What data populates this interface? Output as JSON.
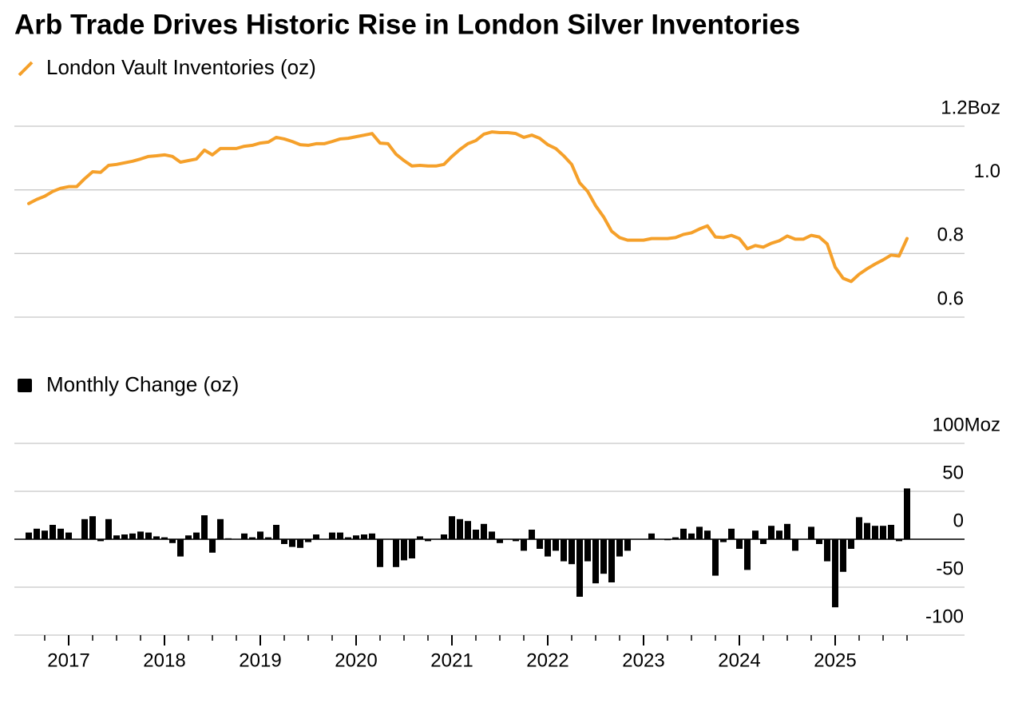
{
  "chart_data": [
    {
      "type": "line",
      "title": "Arb Trade Drives Historic Rise in London Silver Inventories",
      "series": [
        {
          "name": "London Vault Inventories (oz)",
          "color": "#f5a02a",
          "values": [
            0.957,
            0.97,
            0.98,
            0.995,
            1.005,
            1.01,
            1.01,
            1.035,
            1.057,
            1.055,
            1.077,
            1.08,
            1.085,
            1.09,
            1.097,
            1.105,
            1.107,
            1.11,
            1.105,
            1.087,
            1.092,
            1.097,
            1.125,
            1.11,
            1.13,
            1.13,
            1.13,
            1.137,
            1.14,
            1.147,
            1.15,
            1.165,
            1.16,
            1.152,
            1.142,
            1.14,
            1.145,
            1.145,
            1.152,
            1.16,
            1.162,
            1.167,
            1.172,
            1.177,
            1.147,
            1.145,
            1.112,
            1.092,
            1.075,
            1.077,
            1.075,
            1.075,
            1.08,
            1.105,
            1.127,
            1.145,
            1.155,
            1.175,
            1.182,
            1.18,
            1.18,
            1.177,
            1.165,
            1.172,
            1.162,
            1.142,
            1.13,
            1.107,
            1.08,
            1.022,
            0.995,
            0.95,
            0.915,
            0.87,
            0.85,
            0.842,
            0.842,
            0.842,
            0.847,
            0.847,
            0.847,
            0.85,
            0.86,
            0.865,
            0.877,
            0.887,
            0.852,
            0.85,
            0.857,
            0.847,
            0.815,
            0.825,
            0.82,
            0.832,
            0.84,
            0.855,
            0.845,
            0.845,
            0.857,
            0.852,
            0.83,
            0.757,
            0.722,
            0.712,
            0.735,
            0.752,
            0.767,
            0.78,
            0.795,
            0.792,
            0.847
          ]
        }
      ],
      "ylim": [
        0.6,
        1.2
      ],
      "yticks": [
        0.6,
        0.8,
        {
          "value": 1.0,
          "label": "1.0"
        },
        {
          "value": 1.2,
          "label": "1.2Boz"
        }
      ],
      "grid": true
    },
    {
      "type": "bar",
      "categories": [
        null,
        null,
        null,
        null,
        null,
        "2017",
        null,
        null,
        null,
        null,
        null,
        null,
        null,
        null,
        null,
        null,
        null,
        "2018",
        null,
        null,
        null,
        null,
        null,
        null,
        null,
        null,
        null,
        null,
        null,
        "2019",
        null,
        null,
        null,
        null,
        null,
        null,
        null,
        null,
        null,
        null,
        null,
        "2020",
        null,
        null,
        null,
        null,
        null,
        null,
        null,
        null,
        null,
        null,
        null,
        "2021",
        null,
        null,
        null,
        null,
        null,
        null,
        null,
        null,
        null,
        null,
        null,
        "2022",
        null,
        null,
        null,
        null,
        null,
        null,
        null,
        null,
        null,
        null,
        null,
        "2023",
        null,
        null,
        null,
        null,
        null,
        null,
        null,
        null,
        null,
        null,
        null,
        "2024",
        null,
        null,
        null,
        null,
        null,
        null,
        null,
        null,
        null,
        null,
        null,
        "2025",
        null,
        null,
        null,
        null,
        null,
        null,
        null,
        null,
        null
      ],
      "series": [
        {
          "name": "Monthly Change (oz)",
          "color": "#000000",
          "values": [
            7,
            11,
            9,
            15,
            11,
            7,
            0,
            21,
            24,
            -2,
            21,
            4,
            5,
            6,
            8,
            7,
            3,
            2,
            -4,
            -18,
            4,
            7,
            25,
            -14,
            21,
            1,
            0,
            6,
            2,
            8,
            2,
            15,
            -5,
            -8,
            -9,
            -3,
            5,
            0,
            7,
            7,
            2,
            4,
            5,
            6,
            -29,
            0,
            -29,
            -22,
            -20,
            3,
            -2,
            0,
            5,
            24,
            21,
            19,
            10,
            16,
            8,
            -4,
            0,
            -2,
            -12,
            10,
            -10,
            -18,
            -12,
            -23,
            -26,
            -60,
            -23,
            -46,
            -36,
            -45,
            -18,
            -12,
            0,
            0,
            6,
            0,
            -1,
            2,
            11,
            6,
            13,
            9,
            -38,
            -3,
            11,
            -10,
            -32,
            9,
            -5,
            14,
            9,
            16,
            -12,
            0,
            13,
            -5,
            -23,
            -71,
            -34,
            -10,
            23,
            17,
            14,
            14,
            15,
            -2,
            53
          ]
        }
      ],
      "ylim": [
        -100,
        100
      ],
      "yticks": [
        -100,
        -50,
        0,
        50,
        {
          "value": 100,
          "label": "100Moz"
        }
      ],
      "grid": true
    }
  ]
}
